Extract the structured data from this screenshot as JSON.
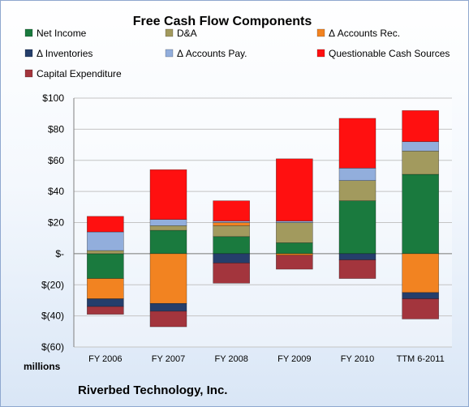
{
  "chart_data": {
    "type": "bar",
    "stacked": true,
    "title": "Free Cash Flow Components",
    "units_label": "millions",
    "footer": "Riverbed Technology, Inc.",
    "categories": [
      "FY 2006",
      "FY 2007",
      "FY 2008",
      "FY 2009",
      "FY 2010",
      "TTM 6-2011"
    ],
    "ylim": [
      -60,
      100
    ],
    "yticks": [
      100,
      80,
      60,
      40,
      20,
      0,
      -20,
      -40,
      -60
    ],
    "ytick_labels": [
      "$100",
      "$80",
      "$60",
      "$40",
      "$20",
      "$-",
      "$(20)",
      "$(40)",
      "$(60)"
    ],
    "grid": true,
    "legend_position": "top",
    "series": [
      {
        "name": "Net Income",
        "color": "#1a7a3e",
        "values": [
          -16,
          15,
          11,
          7,
          34,
          51
        ]
      },
      {
        "name": "D&A",
        "color": "#a29a5e",
        "values": [
          2,
          3,
          7,
          13,
          13,
          15
        ]
      },
      {
        "name": "Δ Accounts Rec.",
        "color": "#f28321",
        "values": [
          -13,
          -32,
          2,
          -1,
          0,
          -25
        ]
      },
      {
        "name": "Δ Inventories",
        "color": "#253e6b",
        "values": [
          -5,
          -5,
          -6,
          0,
          -4,
          -4
        ]
      },
      {
        "name": "Δ Accounts Pay.",
        "color": "#92aedc",
        "values": [
          12,
          4,
          1,
          1,
          8,
          6
        ]
      },
      {
        "name": "Questionable Cash Sources",
        "color": "#ff1010",
        "values": [
          10,
          32,
          13,
          40,
          32,
          20
        ]
      },
      {
        "name": "Capital Expenditure",
        "color": "#a3353d",
        "values": [
          -5,
          -10,
          -13,
          -9,
          -12,
          -13
        ]
      }
    ]
  }
}
